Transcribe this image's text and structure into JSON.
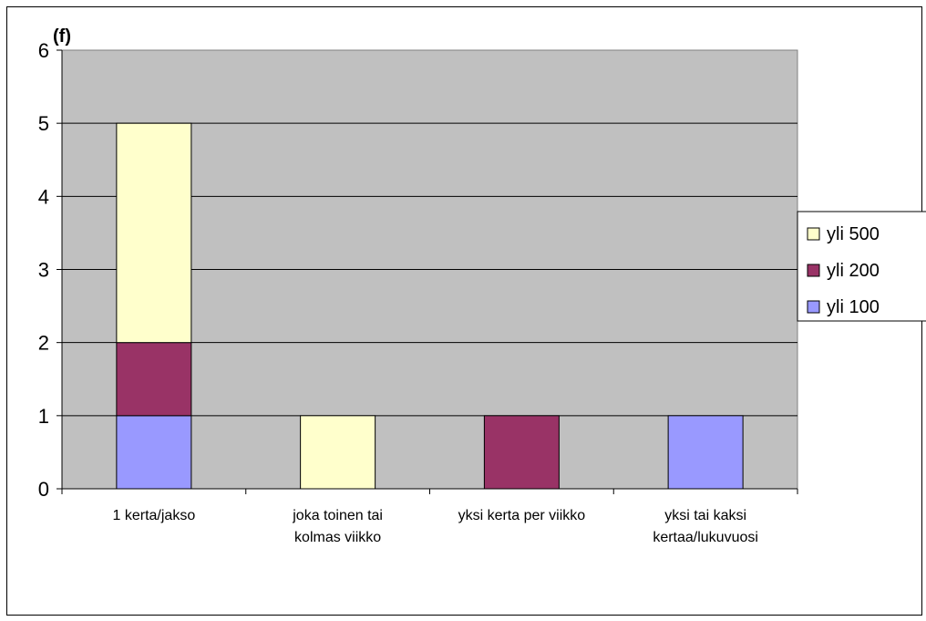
{
  "chart_data": {
    "type": "bar",
    "stacked": true,
    "title": "",
    "ylabel": "(f)",
    "xlabel": "",
    "ylim": [
      0,
      6
    ],
    "yticks": [
      "0",
      "1",
      "2",
      "3",
      "4",
      "5",
      "6"
    ],
    "grid": true,
    "legend_position": "right",
    "categories": [
      [
        "1 kerta/jakso"
      ],
      [
        "joka toinen tai",
        "kolmas viikko"
      ],
      [
        "yksi kerta per viikko"
      ],
      [
        "yksi tai kaksi",
        "kertaa/lukuvuosi"
      ]
    ],
    "series": [
      {
        "name": "yli 100",
        "color": "#9999ff",
        "values": [
          1,
          0,
          0,
          1
        ]
      },
      {
        "name": "yli 200",
        "color": "#993366",
        "values": [
          1,
          0,
          1,
          0
        ]
      },
      {
        "name": "yli 500",
        "color": "#ffffcc",
        "values": [
          3,
          1,
          0,
          0
        ]
      }
    ],
    "legend_order": [
      "yli 500",
      "yli 200",
      "yli 100"
    ],
    "plot_background": "#c0c0c0"
  }
}
